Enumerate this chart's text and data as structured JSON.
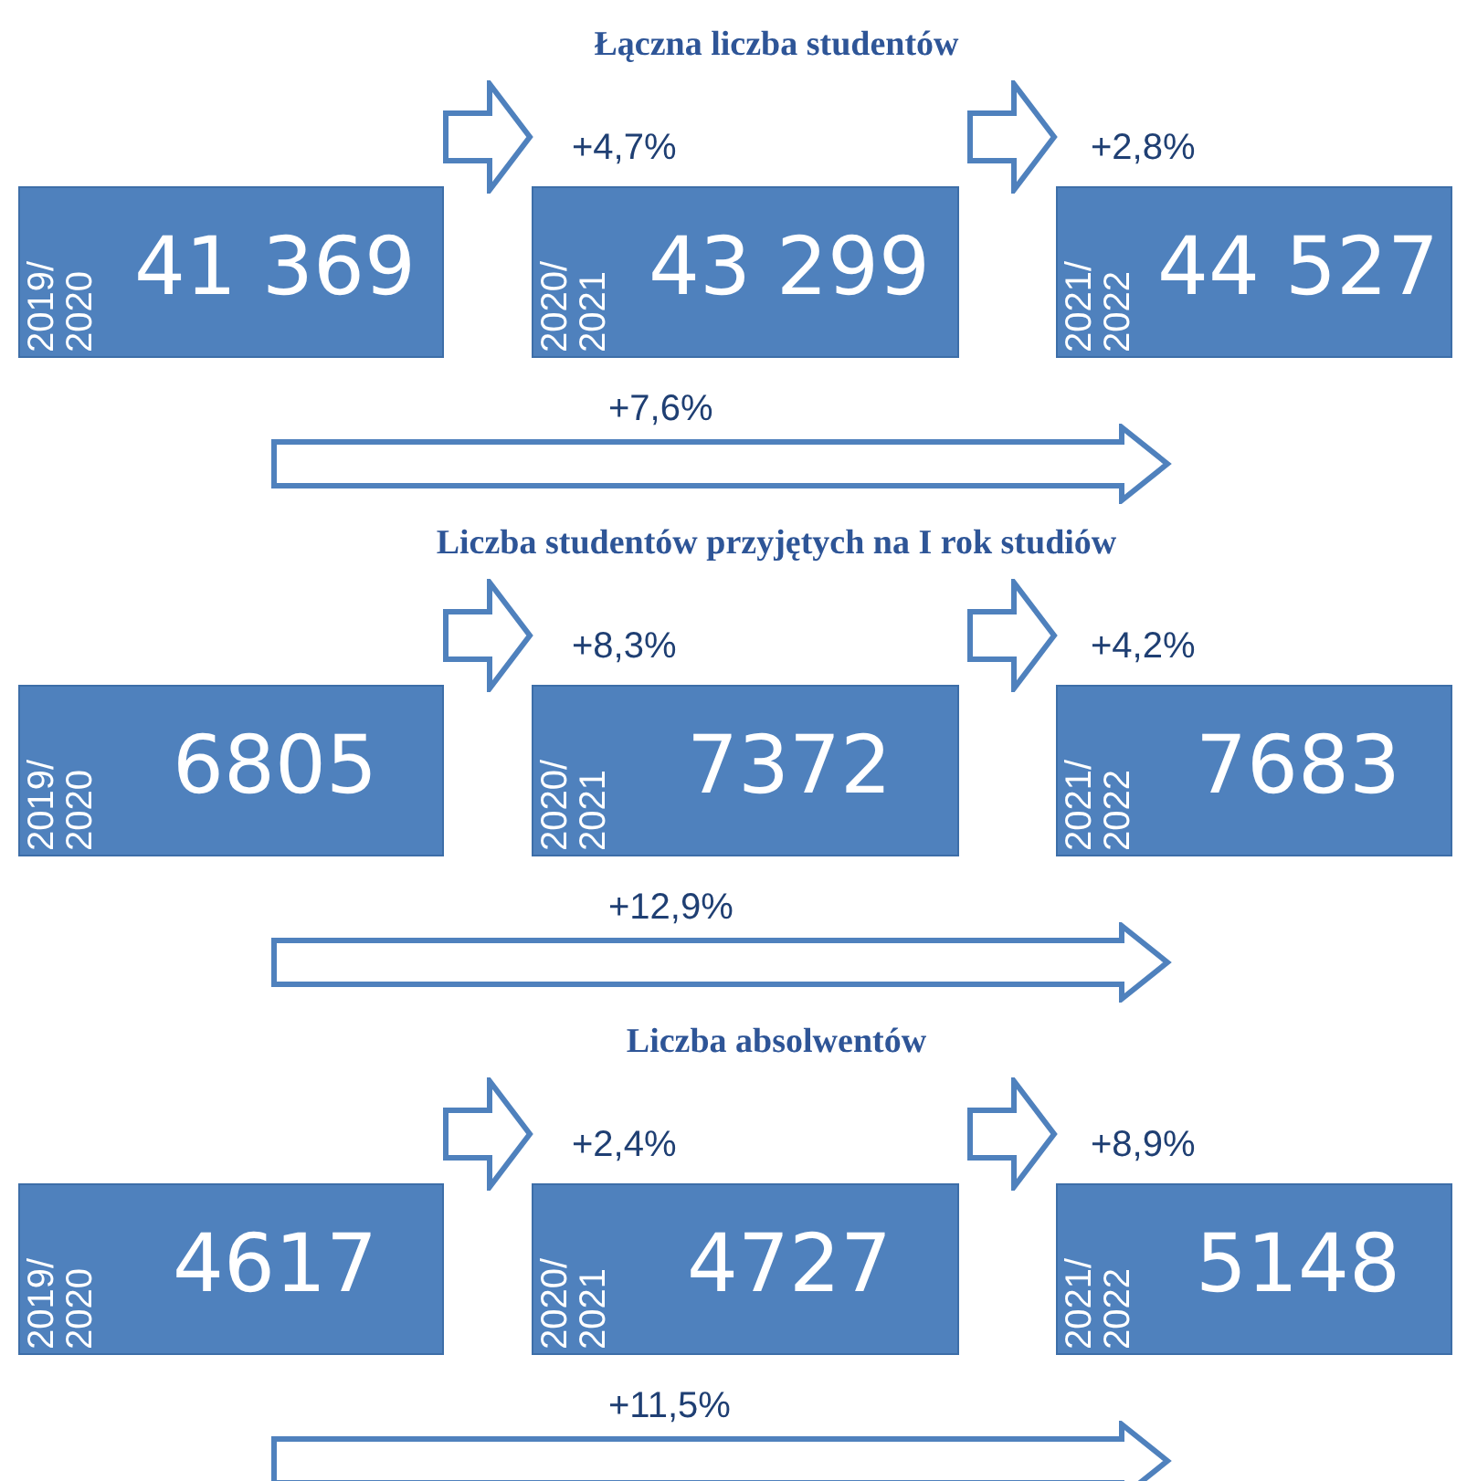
{
  "chart_data": [
    {
      "type": "other",
      "title": "Łączna liczba studentów",
      "categories": [
        "2019/2020",
        "2020/2021",
        "2021/2022"
      ],
      "values": [
        41369,
        43299,
        44527
      ],
      "data_labels": true,
      "annotations": [
        "+4,7%",
        "+2,8%",
        "+7,6%"
      ]
    },
    {
      "type": "other",
      "title": "Liczba studentów przyjętych na I rok studiów",
      "categories": [
        "2019/2020",
        "2020/2021",
        "2021/2022"
      ],
      "values": [
        6805,
        7372,
        7683
      ],
      "data_labels": true,
      "annotations": [
        "+8,3%",
        "+4,2%",
        "+12,9%"
      ]
    },
    {
      "type": "other",
      "title": "Liczba absolwentów",
      "categories": [
        "2019/2020",
        "2020/2021",
        "2021/2022"
      ],
      "values": [
        4617,
        4727,
        5148
      ],
      "data_labels": true,
      "annotations": [
        "+2,4%",
        "+8,9%",
        "+11,5%"
      ]
    }
  ]
}
